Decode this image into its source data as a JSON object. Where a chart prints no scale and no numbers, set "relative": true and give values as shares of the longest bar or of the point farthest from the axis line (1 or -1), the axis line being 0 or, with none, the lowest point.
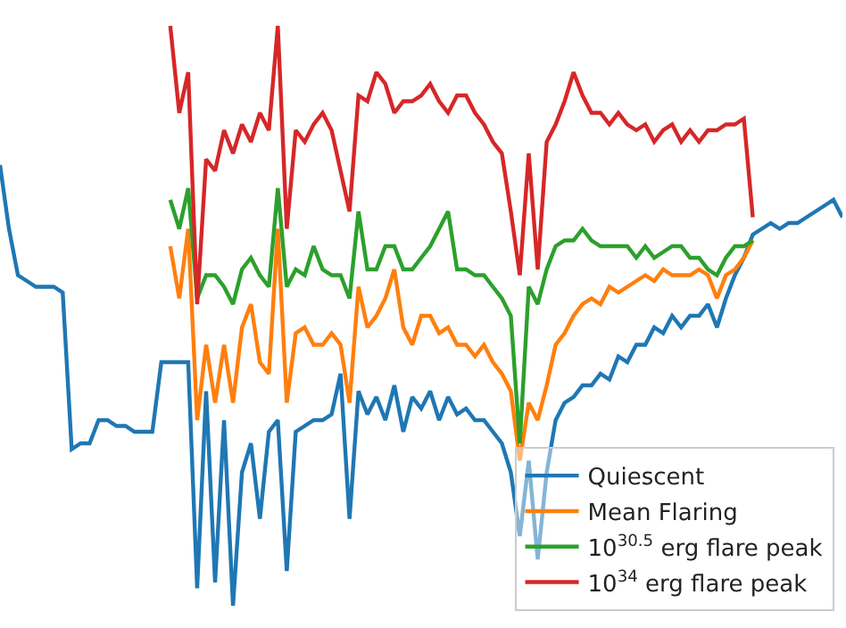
{
  "chart_data": {
    "type": "line",
    "relative": true,
    "legend": "bottom right",
    "marker": "none",
    "line_style": "solid",
    "categories": [
      null,
      null,
      null,
      null,
      null,
      null,
      null,
      null,
      null,
      null,
      null,
      null,
      null,
      null,
      null,
      null,
      null,
      null,
      null,
      null,
      null,
      null,
      null,
      null,
      null,
      null,
      null,
      null,
      null,
      null,
      null,
      null,
      null,
      null,
      null,
      null,
      null,
      null,
      null,
      null,
      null,
      null,
      null,
      null,
      null,
      null,
      null,
      null,
      null,
      null,
      null,
      null,
      null,
      null,
      null,
      null,
      null,
      null,
      null,
      null,
      null,
      null,
      null,
      null,
      null,
      null,
      null,
      null,
      null,
      null,
      null,
      null,
      null,
      null,
      null,
      null,
      null,
      null,
      null,
      null,
      null,
      null,
      null,
      null,
      null,
      null,
      null,
      null,
      null,
      null,
      null,
      null,
      null,
      null,
      null
    ],
    "series": [
      {
        "name": "Quiescent",
        "color": "#1f77b4",
        "values": [
          0.76,
          0.65,
          0.57,
          0.56,
          0.55,
          0.55,
          0.55,
          0.54,
          0.27,
          0.28,
          0.28,
          0.32,
          0.32,
          0.31,
          0.31,
          0.3,
          0.3,
          0.3,
          0.42,
          0.42,
          0.42,
          0.42,
          0.03,
          0.37,
          0.04,
          0.32,
          0.0,
          0.23,
          0.28,
          0.15,
          0.3,
          0.32,
          0.06,
          0.3,
          0.31,
          0.32,
          0.32,
          0.33,
          0.4,
          0.15,
          0.37,
          0.33,
          0.36,
          0.32,
          0.38,
          0.3,
          0.36,
          0.34,
          0.37,
          0.32,
          0.36,
          0.33,
          0.34,
          0.32,
          0.32,
          0.3,
          0.28,
          0.23,
          0.12,
          0.25,
          0.08,
          0.23,
          0.32,
          0.35,
          0.36,
          0.38,
          0.38,
          0.4,
          0.39,
          0.43,
          0.42,
          0.45,
          0.45,
          0.48,
          0.47,
          0.5,
          0.48,
          0.5,
          0.5,
          0.52,
          0.48,
          0.53,
          0.57,
          0.6,
          0.64,
          0.65,
          0.66,
          0.65,
          0.66,
          0.66,
          0.67,
          0.68,
          0.69,
          0.7,
          0.67
        ]
      },
      {
        "name": "Mean Flaring",
        "color": "#ff7f0e",
        "values": [
          null,
          null,
          null,
          null,
          null,
          null,
          null,
          null,
          null,
          null,
          null,
          null,
          null,
          null,
          null,
          null,
          null,
          null,
          null,
          0.62,
          0.53,
          0.65,
          0.32,
          0.45,
          0.35,
          0.45,
          0.35,
          0.48,
          0.52,
          0.42,
          0.4,
          0.65,
          0.35,
          0.47,
          0.48,
          0.45,
          0.45,
          0.47,
          0.45,
          0.35,
          0.55,
          0.48,
          0.5,
          0.53,
          0.58,
          0.48,
          0.45,
          0.5,
          0.5,
          0.47,
          0.48,
          0.45,
          0.45,
          0.43,
          0.45,
          0.42,
          0.4,
          0.37,
          0.25,
          0.35,
          0.32,
          0.38,
          0.45,
          0.47,
          0.5,
          0.52,
          0.53,
          0.52,
          0.55,
          0.54,
          0.55,
          0.56,
          0.57,
          0.56,
          0.58,
          0.57,
          0.57,
          0.57,
          0.58,
          0.57,
          0.53,
          0.57,
          0.58,
          0.6,
          0.63,
          null,
          null,
          null,
          null,
          null,
          null,
          null,
          null,
          null,
          null
        ]
      },
      {
        "name": "10$^{30.5}$ erg flare peak",
        "color": "#2ca02c",
        "values": [
          null,
          null,
          null,
          null,
          null,
          null,
          null,
          null,
          null,
          null,
          null,
          null,
          null,
          null,
          null,
          null,
          null,
          null,
          null,
          0.7,
          0.65,
          0.72,
          0.53,
          0.57,
          0.57,
          0.55,
          0.52,
          0.58,
          0.6,
          0.57,
          0.55,
          0.72,
          0.55,
          0.58,
          0.57,
          0.62,
          0.58,
          0.57,
          0.57,
          0.53,
          0.68,
          0.58,
          0.58,
          0.62,
          0.62,
          0.58,
          0.58,
          0.6,
          0.62,
          0.65,
          0.68,
          0.58,
          0.58,
          0.57,
          0.57,
          0.55,
          0.53,
          0.5,
          0.28,
          0.55,
          0.52,
          0.58,
          0.62,
          0.63,
          0.63,
          0.65,
          0.63,
          0.62,
          0.62,
          0.62,
          0.62,
          0.6,
          0.62,
          0.6,
          0.61,
          0.62,
          0.62,
          0.6,
          0.6,
          0.58,
          0.57,
          0.6,
          0.62,
          0.62,
          0.63,
          null,
          null,
          null,
          null,
          null,
          null,
          null,
          null,
          null,
          null
        ]
      },
      {
        "name": "10$^{34}$ erg flare peak",
        "color": "#d62728",
        "values": [
          null,
          null,
          null,
          null,
          null,
          null,
          null,
          null,
          null,
          null,
          null,
          null,
          null,
          null,
          null,
          null,
          null,
          null,
          null,
          1.0,
          0.85,
          0.92,
          0.52,
          0.77,
          0.75,
          0.82,
          0.78,
          0.83,
          0.8,
          0.85,
          0.82,
          1.0,
          0.65,
          0.82,
          0.8,
          0.83,
          0.85,
          0.82,
          0.75,
          0.68,
          0.88,
          0.87,
          0.92,
          0.9,
          0.85,
          0.87,
          0.87,
          0.88,
          0.9,
          0.87,
          0.85,
          0.88,
          0.88,
          0.85,
          0.83,
          0.8,
          0.78,
          0.68,
          0.57,
          0.78,
          0.58,
          0.8,
          0.83,
          0.87,
          0.92,
          0.88,
          0.85,
          0.85,
          0.83,
          0.85,
          0.83,
          0.82,
          0.83,
          0.8,
          0.82,
          0.83,
          0.8,
          0.82,
          0.8,
          0.82,
          0.82,
          0.83,
          0.83,
          0.84,
          0.67,
          null,
          null,
          null,
          null,
          null,
          null,
          null,
          null,
          null,
          null
        ]
      }
    ]
  }
}
